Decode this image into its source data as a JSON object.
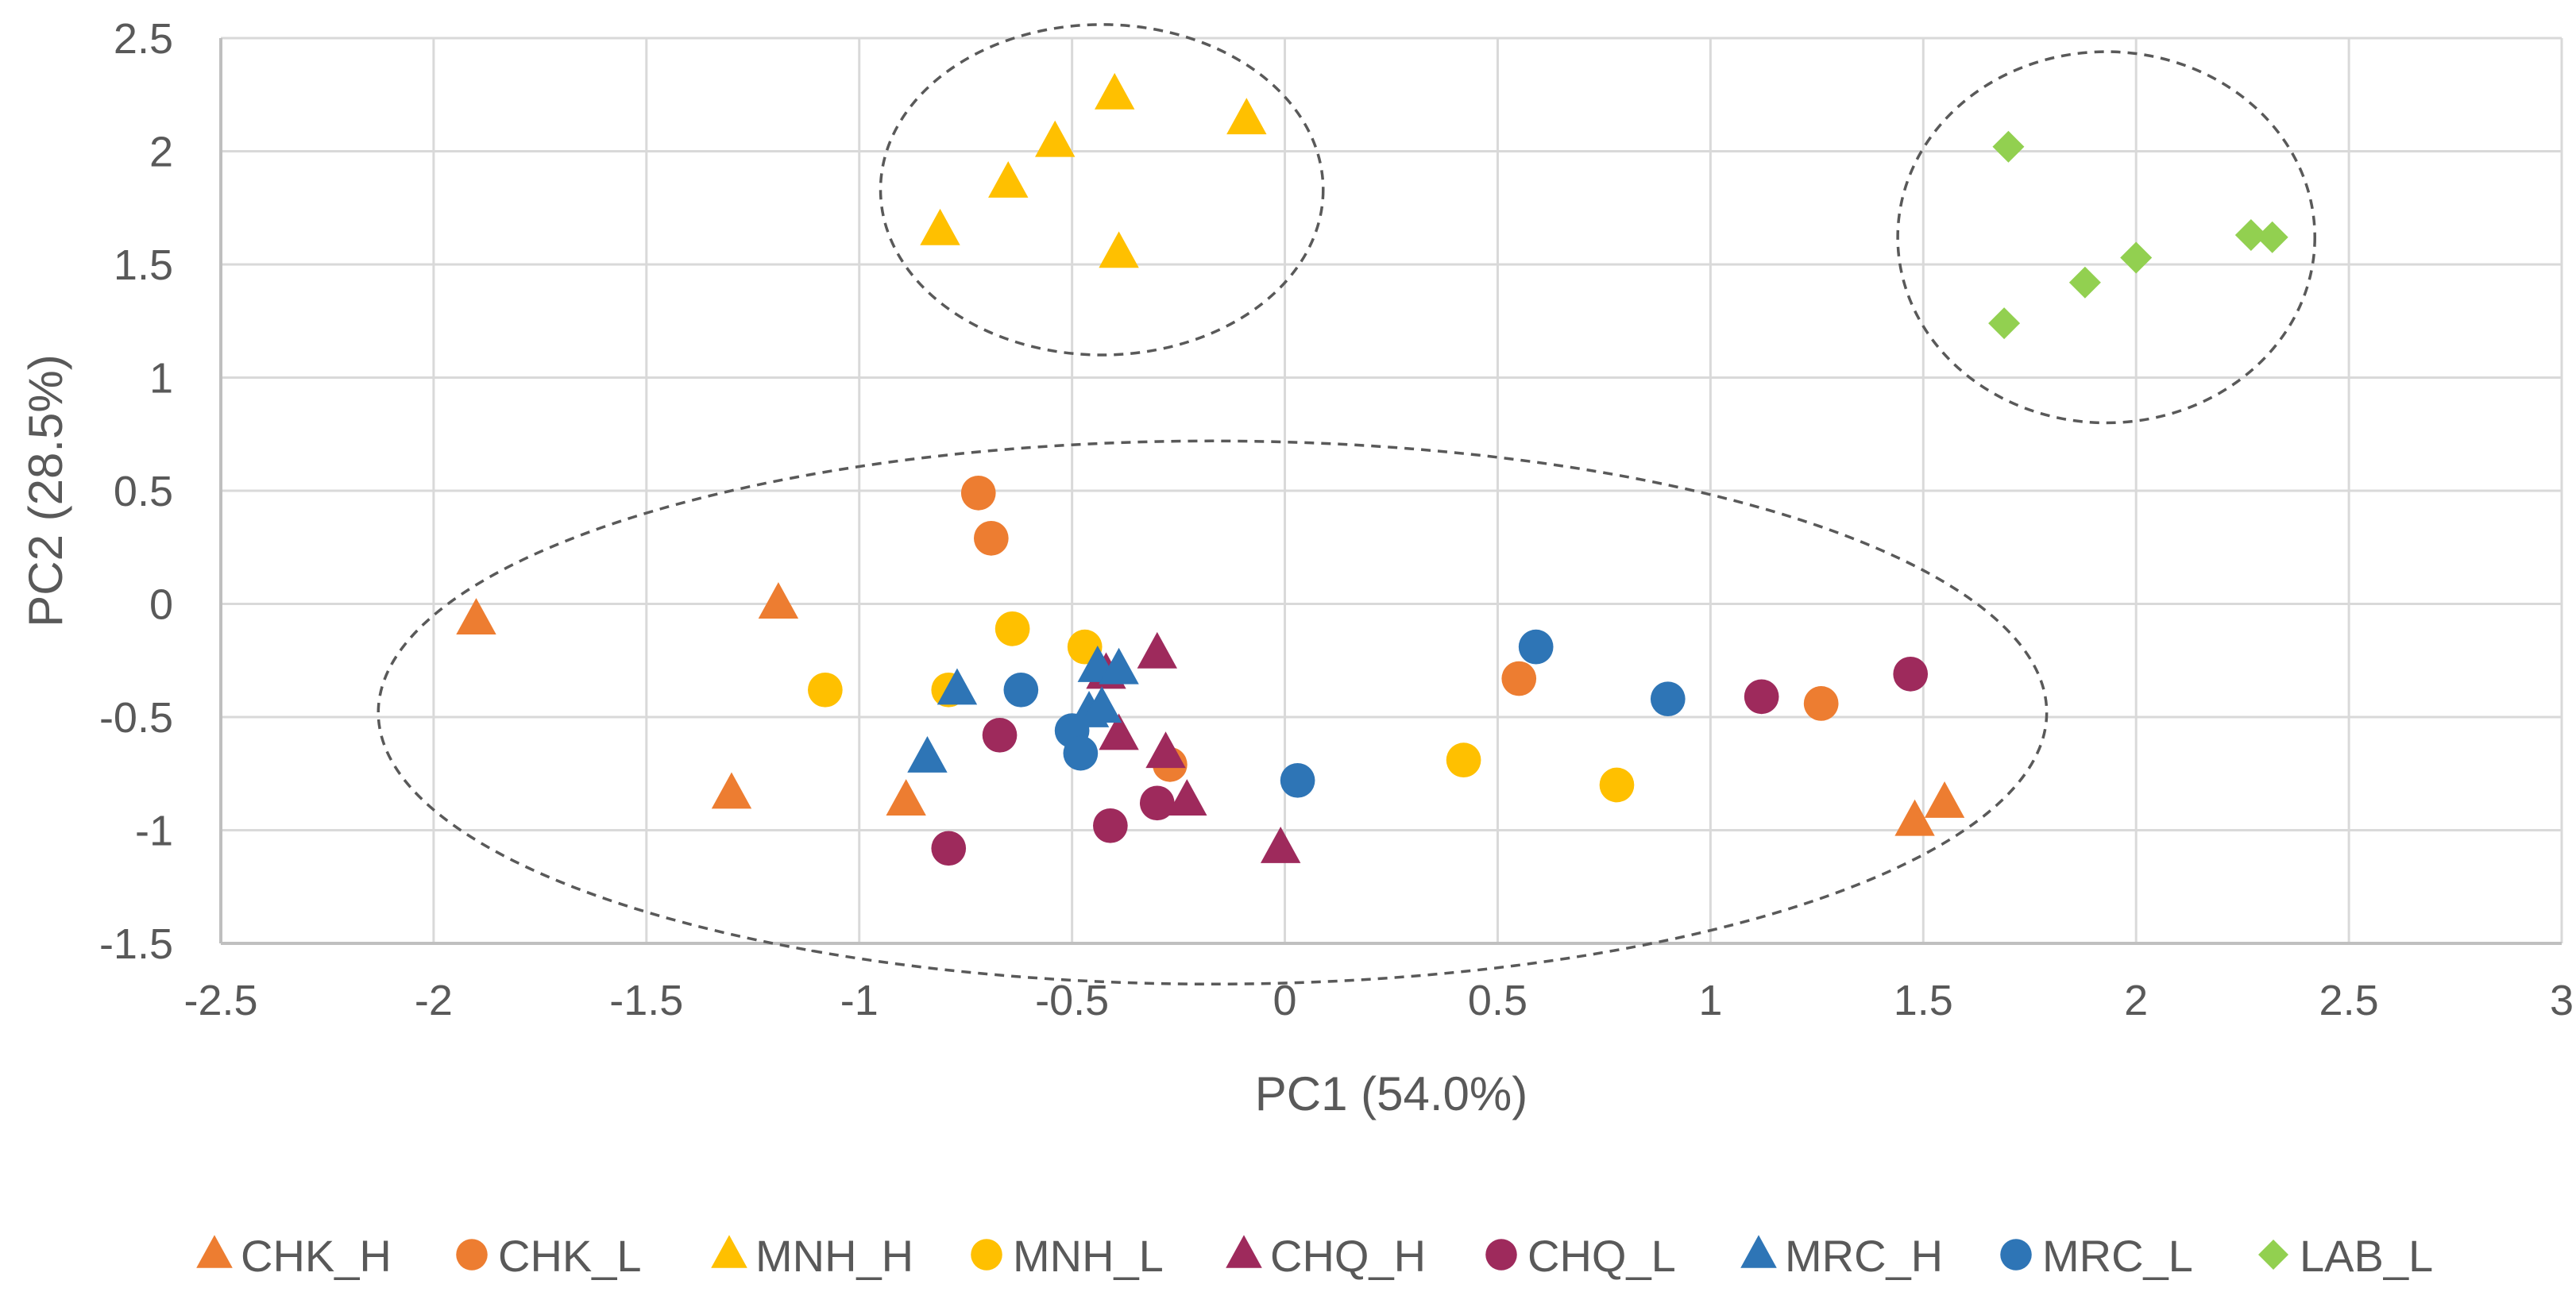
{
  "chart_data": {
    "type": "scatter",
    "title": "",
    "xlabel": "PC1 (54.0%)",
    "ylabel": "PC2 (28.5%)",
    "xlim": [
      -2.5,
      3
    ],
    "ylim": [
      -1.5,
      2.5
    ],
    "xticks": [
      -2.5,
      -2,
      -1.5,
      -1,
      -0.5,
      0,
      0.5,
      1,
      1.5,
      2,
      2.5,
      3
    ],
    "yticks": [
      -1.5,
      -1,
      -0.5,
      0,
      0.5,
      1,
      1.5,
      2,
      2.5
    ],
    "xtick_labels": [
      "-2.5",
      "-2",
      "-1.5",
      "-1",
      "-0.5",
      "0",
      "0.5",
      "1",
      "1.5",
      "2",
      "2.5",
      "3"
    ],
    "ytick_labels": [
      "-1.5",
      "-1",
      "-0.5",
      "0",
      "0.5",
      "1",
      "1.5",
      "2",
      "2.5"
    ],
    "grid": true,
    "legend_position": "bottom",
    "series": [
      {
        "name": "CHK_H",
        "marker": "triangle",
        "color": "#ED7D31",
        "points": [
          [
            -1.9,
            -0.07
          ],
          [
            -1.19,
            0.0
          ],
          [
            -1.3,
            -0.84
          ],
          [
            -0.89,
            -0.87
          ],
          [
            1.48,
            -0.96
          ],
          [
            1.55,
            -0.88
          ]
        ]
      },
      {
        "name": "CHK_L",
        "marker": "circle",
        "color": "#ED7D31",
        "points": [
          [
            -0.72,
            0.49
          ],
          [
            -0.69,
            0.29
          ],
          [
            -0.27,
            -0.71
          ],
          [
            0.55,
            -0.33
          ],
          [
            1.26,
            -0.44
          ]
        ]
      },
      {
        "name": "MNH_H",
        "marker": "triangle",
        "color": "#FFC000",
        "points": [
          [
            -0.4,
            2.25
          ],
          [
            -0.09,
            2.14
          ],
          [
            -0.54,
            2.04
          ],
          [
            -0.65,
            1.86
          ],
          [
            -0.81,
            1.65
          ],
          [
            -0.39,
            1.55
          ]
        ]
      },
      {
        "name": "MNH_L",
        "marker": "circle",
        "color": "#FFC000",
        "points": [
          [
            -1.08,
            -0.38
          ],
          [
            -0.64,
            -0.11
          ],
          [
            -0.47,
            -0.19
          ],
          [
            -0.79,
            -0.38
          ],
          [
            0.42,
            -0.69
          ],
          [
            0.78,
            -0.8
          ]
        ]
      },
      {
        "name": "CHQ_H",
        "marker": "triangle",
        "color": "#9E2A5C",
        "points": [
          [
            -0.3,
            -0.22
          ],
          [
            -0.42,
            -0.31
          ],
          [
            -0.39,
            -0.58
          ],
          [
            -0.28,
            -0.66
          ],
          [
            -0.23,
            -0.87
          ],
          [
            -0.01,
            -1.08
          ]
        ]
      },
      {
        "name": "CHQ_L",
        "marker": "circle",
        "color": "#9E2A5C",
        "points": [
          [
            -0.67,
            -0.58
          ],
          [
            -0.79,
            -1.08
          ],
          [
            -0.3,
            -0.88
          ],
          [
            -0.41,
            -0.98
          ],
          [
            1.12,
            -0.41
          ],
          [
            1.47,
            -0.31
          ]
        ]
      },
      {
        "name": "MRC_H",
        "marker": "triangle",
        "color": "#2E75B6",
        "points": [
          [
            -0.77,
            -0.38
          ],
          [
            -0.84,
            -0.68
          ],
          [
            -0.44,
            -0.28
          ],
          [
            -0.39,
            -0.29
          ],
          [
            -0.46,
            -0.48
          ],
          [
            -0.43,
            -0.46
          ]
        ]
      },
      {
        "name": "MRC_L",
        "marker": "circle",
        "color": "#2E75B6",
        "points": [
          [
            -0.62,
            -0.38
          ],
          [
            -0.5,
            -0.56
          ],
          [
            -0.48,
            -0.66
          ],
          [
            0.03,
            -0.78
          ],
          [
            0.59,
            -0.19
          ],
          [
            0.9,
            -0.42
          ]
        ]
      },
      {
        "name": "LAB_L",
        "marker": "diamond",
        "color": "#92D050",
        "points": [
          [
            1.7,
            2.02
          ],
          [
            2.27,
            1.63
          ],
          [
            2.32,
            1.62
          ],
          [
            2.0,
            1.53
          ],
          [
            1.88,
            1.42
          ],
          [
            1.69,
            1.24
          ]
        ]
      }
    ],
    "annotations": [
      {
        "type": "dashed-ellipse",
        "cx": -0.43,
        "cy": 1.83,
        "rx": 0.52,
        "ry": 0.73
      },
      {
        "type": "dashed-ellipse",
        "cx": 1.93,
        "cy": 1.62,
        "rx": 0.49,
        "ry": 0.82
      },
      {
        "type": "dashed-ellipse",
        "cx": -0.17,
        "cy": -0.48,
        "rx": 1.96,
        "ry": 1.2
      }
    ]
  }
}
